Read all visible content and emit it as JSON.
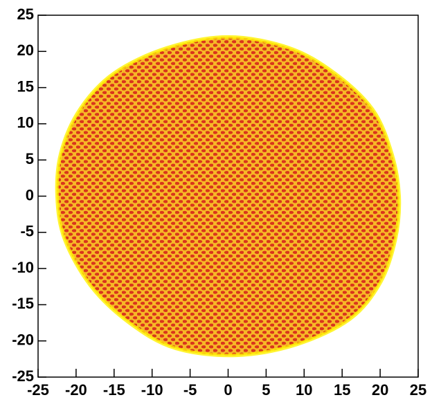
{
  "chart_data": {
    "type": "lattice-region",
    "outline": {
      "x": [
        0,
        8,
        14,
        19,
        21.5,
        22.5,
        22,
        20,
        16,
        9,
        1,
        -7,
        -13,
        -18,
        -21.5,
        -22.5,
        -22,
        -19.5,
        -15,
        -8
      ],
      "y": [
        22,
        20.5,
        17,
        12,
        6,
        0,
        -6,
        -12,
        -17,
        -20.5,
        -22,
        -21,
        -17.5,
        -12.5,
        -6,
        0,
        6,
        12,
        17,
        20.5
      ]
    },
    "fill_color": "#f7b827",
    "dot_color": "#d9351c",
    "edge_color": "#fff200",
    "xlim": [
      -25,
      25
    ],
    "ylim": [
      -25,
      25
    ],
    "xticks": [
      -25,
      -20,
      -15,
      -10,
      -5,
      0,
      5,
      10,
      15,
      20,
      25
    ],
    "yticks": [
      -25,
      -20,
      -15,
      -10,
      -5,
      0,
      5,
      10,
      15,
      20,
      25
    ]
  }
}
